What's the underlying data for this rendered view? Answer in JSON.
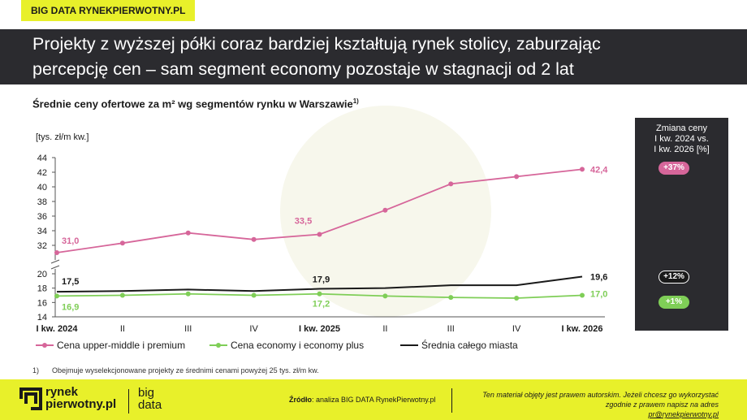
{
  "top_tag": "BIG DATA RYNEKPIERWOTNY.PL",
  "headline": {
    "line1": "Projekty z wyższej półki coraz bardziej kształtują rynek stolicy, zaburzając",
    "line2": "percepcję cen – sam segment economy pozostaje w stagnacji od 2 lat"
  },
  "subtitle": "Średnie ceny ofertowe za m²  wg segmentów rynku w Warszawie",
  "subtitle_sup": "1)",
  "panel": {
    "title_lines": [
      "Zmiana ceny",
      "I kw. 2024 vs.",
      "I kw. 2026 [%]"
    ],
    "badges": {
      "premium": "+37%",
      "average": "+12%",
      "economy": "+1%"
    }
  },
  "chart_data": {
    "type": "line",
    "ylabel": "[tys. zł/m kw.]",
    "categories": [
      "I kw. 2024",
      "II",
      "III",
      "IV",
      "I kw. 2025",
      "II",
      "III",
      "IV",
      "I kw. 2026"
    ],
    "bold_categories": [
      "I kw. 2024",
      "I kw. 2025",
      "I kw. 2026"
    ],
    "axis_break": true,
    "upper_ylim": [
      31,
      44
    ],
    "upper_ticks": [
      32,
      34,
      36,
      38,
      40,
      42,
      44
    ],
    "lower_ylim": [
      14,
      20
    ],
    "lower_ticks": [
      14,
      16,
      18,
      20
    ],
    "series": [
      {
        "name": "Cena upper-middle i premium",
        "color": "#d6669a",
        "marker": "circle",
        "axis": "upper",
        "values": [
          31.0,
          32.3,
          33.7,
          32.8,
          33.5,
          36.8,
          40.4,
          41.4,
          42.4
        ],
        "labels": {
          "0": "31,0",
          "4": "33,5",
          "8": "42,4"
        }
      },
      {
        "name": "Cena economy i economy plus",
        "color": "#7fce57",
        "marker": "circle",
        "axis": "lower",
        "values": [
          16.9,
          17.0,
          17.2,
          17.0,
          17.2,
          16.9,
          16.7,
          16.6,
          17.0
        ],
        "labels": {
          "0": "16,9",
          "4": "17,2",
          "8": "17,0"
        }
      },
      {
        "name": "Średnia całego miasta",
        "color": "#1a1a1a",
        "marker": "none",
        "axis": "lower",
        "values": [
          17.5,
          17.6,
          17.8,
          17.6,
          17.9,
          18.0,
          18.4,
          18.4,
          19.6
        ],
        "labels": {
          "0": "17,5",
          "4": "17,9",
          "8": "19,6"
        }
      }
    ],
    "legend_position": "bottom"
  },
  "footnote": {
    "number": "1)",
    "text": "Obejmuje wyselekcjonowane projekty ze średnimi cenami powyżej 25 tys. zł/m kw."
  },
  "footer": {
    "logo_line1": "rynek",
    "logo_line2": "pierwotny.pl",
    "logo2_line1": "big",
    "logo2_line2": "data",
    "source_label": "Źródło",
    "source_text": ": analiza BIG DATA RynekPierwotny.pl",
    "copy_line1": "Ten materiał objęty jest prawem autorskim. Jeżeli chcesz go wykorzystać",
    "copy_line2": "zgodnie z prawem napisz na adres ",
    "copy_email": "pr@rynekpierwotny.pl"
  },
  "colors": {
    "accent_yellow": "#e8f02a",
    "dark": "#2b2b2f",
    "pink": "#d6669a",
    "green": "#7fce57"
  }
}
